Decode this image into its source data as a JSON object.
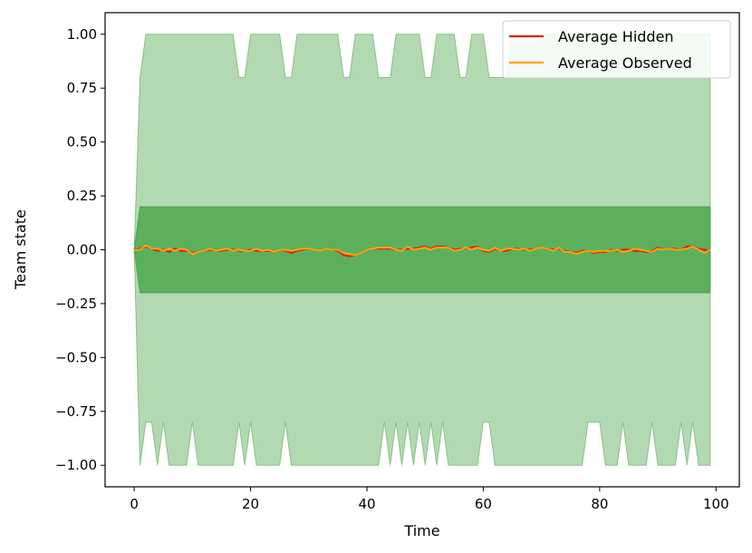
{
  "chart_data": {
    "type": "line",
    "title": "",
    "xlabel": "Time",
    "ylabel": "Team state",
    "xlim": [
      -5,
      104
    ],
    "ylim": [
      -1.1,
      1.1
    ],
    "x_ticks": [
      0,
      20,
      40,
      60,
      80,
      100
    ],
    "x_tick_labels": [
      "0",
      "20",
      "40",
      "60",
      "80",
      "100"
    ],
    "y_ticks": [
      1.0,
      0.75,
      0.5,
      0.25,
      0.0,
      -0.25,
      -0.5,
      -0.75,
      -1.0
    ],
    "y_tick_labels": [
      "1.00",
      "0.75",
      "0.50",
      "0.25",
      "0.00",
      "−0.25",
      "−0.50",
      "−0.75",
      "−1.00"
    ],
    "grid": false,
    "legend_position": "top-right",
    "colors": {
      "hidden": "#e31a1c",
      "observed": "#ffa500",
      "band_outer": "#b3d9b3",
      "band_inner": "#5cb05c",
      "band_edge": "#3f9b3f"
    },
    "series": [
      {
        "name": "Average Hidden",
        "color": "#e31a1c",
        "x": [
          0,
          1,
          2,
          3,
          4,
          5,
          6,
          7,
          8,
          9,
          10,
          11,
          12,
          13,
          14,
          15,
          16,
          17,
          18,
          19,
          20,
          21,
          22,
          23,
          24,
          25,
          26,
          27,
          28,
          29,
          30,
          31,
          32,
          33,
          34,
          35,
          36,
          37,
          38,
          39,
          40,
          41,
          42,
          43,
          44,
          45,
          46,
          47,
          48,
          49,
          50,
          51,
          52,
          53,
          54,
          55,
          56,
          57,
          58,
          59,
          60,
          61,
          62,
          63,
          64,
          65,
          66,
          67,
          68,
          69,
          70,
          71,
          72,
          73,
          74,
          75,
          76,
          77,
          78,
          79,
          80,
          81,
          82,
          83,
          84,
          85,
          86,
          87,
          88,
          89,
          90,
          91,
          92,
          93,
          94,
          95,
          96,
          97,
          98,
          99
        ],
        "values": [
          0.0,
          0.005,
          0.015,
          0.005,
          -0.005,
          0.0,
          -0.01,
          0.005,
          -0.005,
          -0.005,
          -0.015,
          -0.01,
          -0.005,
          0.0,
          -0.005,
          -0.005,
          0.0,
          0.0,
          -0.005,
          -0.005,
          0.0,
          -0.005,
          -0.005,
          -0.005,
          -0.01,
          0.0,
          -0.005,
          -0.015,
          -0.005,
          0.0,
          0.005,
          0.0,
          -0.005,
          0.005,
          0.0,
          -0.005,
          -0.025,
          -0.03,
          -0.025,
          -0.015,
          0.0,
          0.005,
          0.005,
          0.005,
          0.005,
          0.0,
          0.0,
          0.005,
          0.005,
          0.01,
          0.015,
          0.005,
          0.015,
          0.015,
          0.01,
          0.0,
          0.005,
          0.005,
          0.01,
          0.015,
          -0.005,
          -0.01,
          0.005,
          -0.005,
          -0.005,
          0.005,
          0.005,
          0.0,
          0.0,
          0.005,
          0.01,
          0.005,
          0.0,
          0.005,
          -0.005,
          -0.01,
          -0.015,
          -0.005,
          -0.005,
          -0.015,
          -0.01,
          -0.01,
          0.0,
          -0.005,
          0.0,
          0.0,
          -0.005,
          -0.005,
          -0.01,
          -0.005,
          0.01,
          0.0,
          0.005,
          0.005,
          0.0,
          0.015,
          0.015,
          0.005,
          0.0,
          -0.005
        ]
      },
      {
        "name": "Average Observed",
        "color": "#ffa500",
        "x": [
          0,
          1,
          2,
          3,
          4,
          5,
          6,
          7,
          8,
          9,
          10,
          11,
          12,
          13,
          14,
          15,
          16,
          17,
          18,
          19,
          20,
          21,
          22,
          23,
          24,
          25,
          26,
          27,
          28,
          29,
          30,
          31,
          32,
          33,
          34,
          35,
          36,
          37,
          38,
          39,
          40,
          41,
          42,
          43,
          44,
          45,
          46,
          47,
          48,
          49,
          50,
          51,
          52,
          53,
          54,
          55,
          56,
          57,
          58,
          59,
          60,
          61,
          62,
          63,
          64,
          65,
          66,
          67,
          68,
          69,
          70,
          71,
          72,
          73,
          74,
          75,
          76,
          77,
          78,
          79,
          80,
          81,
          82,
          83,
          84,
          85,
          86,
          87,
          88,
          89,
          90,
          91,
          92,
          93,
          94,
          95,
          96,
          97,
          98,
          99
        ],
        "values": [
          0.0,
          0.0,
          0.02,
          0.005,
          0.005,
          -0.005,
          0.005,
          -0.005,
          0.005,
          0.0,
          -0.02,
          -0.01,
          -0.005,
          0.005,
          -0.005,
          0.0,
          0.005,
          -0.005,
          0.0,
          -0.005,
          -0.005,
          0.005,
          -0.005,
          0.0,
          -0.01,
          0.0,
          0.0,
          -0.005,
          0.0,
          0.005,
          0.005,
          0.0,
          -0.005,
          0.005,
          0.0,
          0.0,
          -0.015,
          -0.02,
          -0.025,
          -0.015,
          0.0,
          0.005,
          0.01,
          0.01,
          0.01,
          0.0,
          -0.005,
          0.015,
          0.0,
          0.005,
          0.01,
          0.0,
          0.01,
          0.01,
          0.01,
          -0.005,
          0.0,
          0.01,
          0.0,
          0.01,
          0.0,
          -0.005,
          0.01,
          -0.005,
          0.005,
          0.005,
          0.0,
          0.005,
          -0.005,
          0.005,
          0.01,
          0.005,
          -0.005,
          0.01,
          -0.01,
          -0.01,
          -0.02,
          -0.01,
          -0.005,
          -0.01,
          -0.005,
          -0.005,
          -0.005,
          0.0,
          -0.01,
          -0.005,
          0.005,
          0.0,
          -0.005,
          -0.01,
          0.005,
          0.0,
          0.005,
          0.0,
          0.0,
          0.005,
          0.015,
          0.0,
          -0.015,
          0.0
        ]
      }
    ],
    "outer_band": {
      "x": [
        0,
        1,
        2,
        3,
        4,
        5,
        6,
        7,
        8,
        9,
        10,
        11,
        12,
        13,
        14,
        15,
        16,
        17,
        18,
        19,
        20,
        21,
        22,
        23,
        24,
        25,
        26,
        27,
        28,
        29,
        30,
        31,
        32,
        33,
        34,
        35,
        36,
        37,
        38,
        39,
        40,
        41,
        42,
        43,
        44,
        45,
        46,
        47,
        48,
        49,
        50,
        51,
        52,
        53,
        54,
        55,
        56,
        57,
        58,
        59,
        60,
        61,
        62,
        63,
        64,
        65,
        66,
        67,
        68,
        69,
        70,
        71,
        72,
        73,
        74,
        75,
        76,
        77,
        78,
        79,
        80,
        81,
        82,
        83,
        84,
        85,
        86,
        87,
        88,
        89,
        90,
        91,
        92,
        93,
        94,
        95,
        96,
        97,
        98,
        99
      ],
      "upper": [
        0.0,
        0.8,
        1,
        1,
        1,
        1,
        1,
        1,
        1,
        1,
        1,
        1,
        1,
        1,
        1,
        1,
        1,
        1,
        0.8,
        0.8,
        1,
        1,
        1,
        1,
        1,
        1,
        0.8,
        0.8,
        1,
        1,
        1,
        1,
        1,
        1,
        1,
        1,
        0.8,
        0.8,
        1,
        1,
        1,
        1,
        0.8,
        0.8,
        0.8,
        1,
        1,
        1,
        1,
        1,
        0.8,
        0.8,
        1,
        1,
        1,
        1,
        0.8,
        0.8,
        1,
        1,
        1,
        0.8,
        0.8,
        0.8,
        0.8,
        1,
        1,
        1,
        1,
        1,
        1,
        1,
        1,
        1,
        1,
        1,
        1,
        1,
        1,
        1,
        1,
        1,
        1,
        1,
        1,
        1,
        1,
        1,
        1,
        1,
        1,
        1,
        1,
        1,
        1,
        1,
        1,
        1,
        1,
        1
      ],
      "lower": [
        0.0,
        -1,
        -0.8,
        -0.8,
        -1,
        -0.8,
        -1,
        -1,
        -1,
        -1,
        -0.8,
        -1,
        -1,
        -1,
        -1,
        -1,
        -1,
        -1,
        -0.8,
        -1,
        -0.8,
        -1,
        -1,
        -1,
        -1,
        -1,
        -0.8,
        -1,
        -1,
        -1,
        -1,
        -1,
        -1,
        -1,
        -1,
        -1,
        -1,
        -1,
        -1,
        -1,
        -1,
        -1,
        -1,
        -0.8,
        -1,
        -0.8,
        -1,
        -0.8,
        -1,
        -0.8,
        -1,
        -0.8,
        -1,
        -0.8,
        -1,
        -1,
        -1,
        -1,
        -1,
        -1,
        -0.8,
        -0.8,
        -1,
        -1,
        -1,
        -1,
        -1,
        -1,
        -1,
        -1,
        -1,
        -1,
        -1,
        -1,
        -1,
        -1,
        -1,
        -1,
        -0.8,
        -0.8,
        -0.8,
        -1,
        -1,
        -1,
        -0.8,
        -1,
        -1,
        -1,
        -1,
        -0.8,
        -1,
        -1,
        -1,
        -1,
        -0.8,
        -1,
        -0.8,
        -1,
        -1,
        -1
      ]
    },
    "inner_band": {
      "x": [
        0,
        1,
        99
      ],
      "upper": [
        0.0,
        0.2,
        0.2
      ],
      "lower": [
        0.0,
        -0.2,
        -0.2
      ]
    }
  }
}
